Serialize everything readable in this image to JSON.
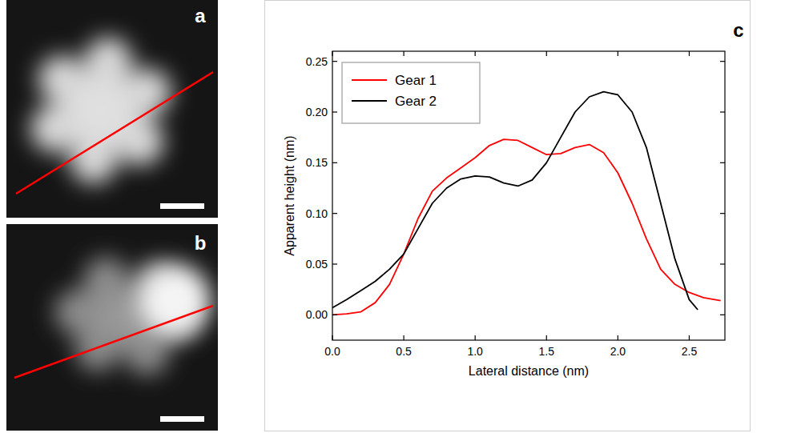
{
  "panel_labels": [
    "a",
    "b",
    "c"
  ],
  "chart_data": {
    "type": "line",
    "x_label": "Lateral distance (nm)",
    "y_label": "Apparent height (nm)",
    "xlim": [
      0,
      2.75
    ],
    "ylim": [
      -0.025,
      0.26
    ],
    "xticks": [
      {
        "value": 0,
        "label": "0.0"
      },
      {
        "value": 0.5,
        "label": "0.5"
      },
      {
        "value": 1,
        "label": "1.0"
      },
      {
        "value": 1.5,
        "label": "1.5"
      },
      {
        "value": 2,
        "label": "2.0"
      },
      {
        "value": 2.5,
        "label": "2.5"
      }
    ],
    "yticks": [
      {
        "value": 0,
        "label": "0.00"
      },
      {
        "value": 0.05,
        "label": "0.05"
      },
      {
        "value": 0.1,
        "label": "0.10"
      },
      {
        "value": 0.15,
        "label": "0.15"
      },
      {
        "value": 0.2,
        "label": "0.20"
      },
      {
        "value": 0.25,
        "label": "0.25"
      }
    ],
    "grid": false,
    "legend": "top-left",
    "series": [
      {
        "name": "Gear 1",
        "color": "#ff0000",
        "x": [
          0,
          0.1,
          0.2,
          0.3,
          0.4,
          0.5,
          0.6,
          0.7,
          0.8,
          0.9,
          1.0,
          1.1,
          1.2,
          1.3,
          1.4,
          1.5,
          1.6,
          1.7,
          1.8,
          1.9,
          2.0,
          2.1,
          2.2,
          2.3,
          2.4,
          2.5,
          2.6,
          2.72
        ],
        "values": [
          0,
          0.001,
          0.003,
          0.012,
          0.03,
          0.06,
          0.095,
          0.122,
          0.135,
          0.145,
          0.155,
          0.167,
          0.173,
          0.172,
          0.165,
          0.158,
          0.159,
          0.165,
          0.168,
          0.16,
          0.14,
          0.11,
          0.075,
          0.045,
          0.03,
          0.022,
          0.017,
          0.014
        ]
      },
      {
        "name": "Gear 2",
        "color": "#000000",
        "x": [
          0,
          0.1,
          0.2,
          0.3,
          0.4,
          0.5,
          0.6,
          0.7,
          0.8,
          0.9,
          1.0,
          1.1,
          1.2,
          1.3,
          1.4,
          1.5,
          1.6,
          1.7,
          1.8,
          1.9,
          2.0,
          2.1,
          2.2,
          2.3,
          2.4,
          2.5,
          2.56
        ],
        "values": [
          0.007,
          0.015,
          0.024,
          0.033,
          0.045,
          0.06,
          0.085,
          0.11,
          0.125,
          0.134,
          0.137,
          0.136,
          0.13,
          0.127,
          0.133,
          0.15,
          0.175,
          0.2,
          0.215,
          0.22,
          0.217,
          0.2,
          0.165,
          0.11,
          0.055,
          0.015,
          0.005
        ]
      }
    ]
  }
}
